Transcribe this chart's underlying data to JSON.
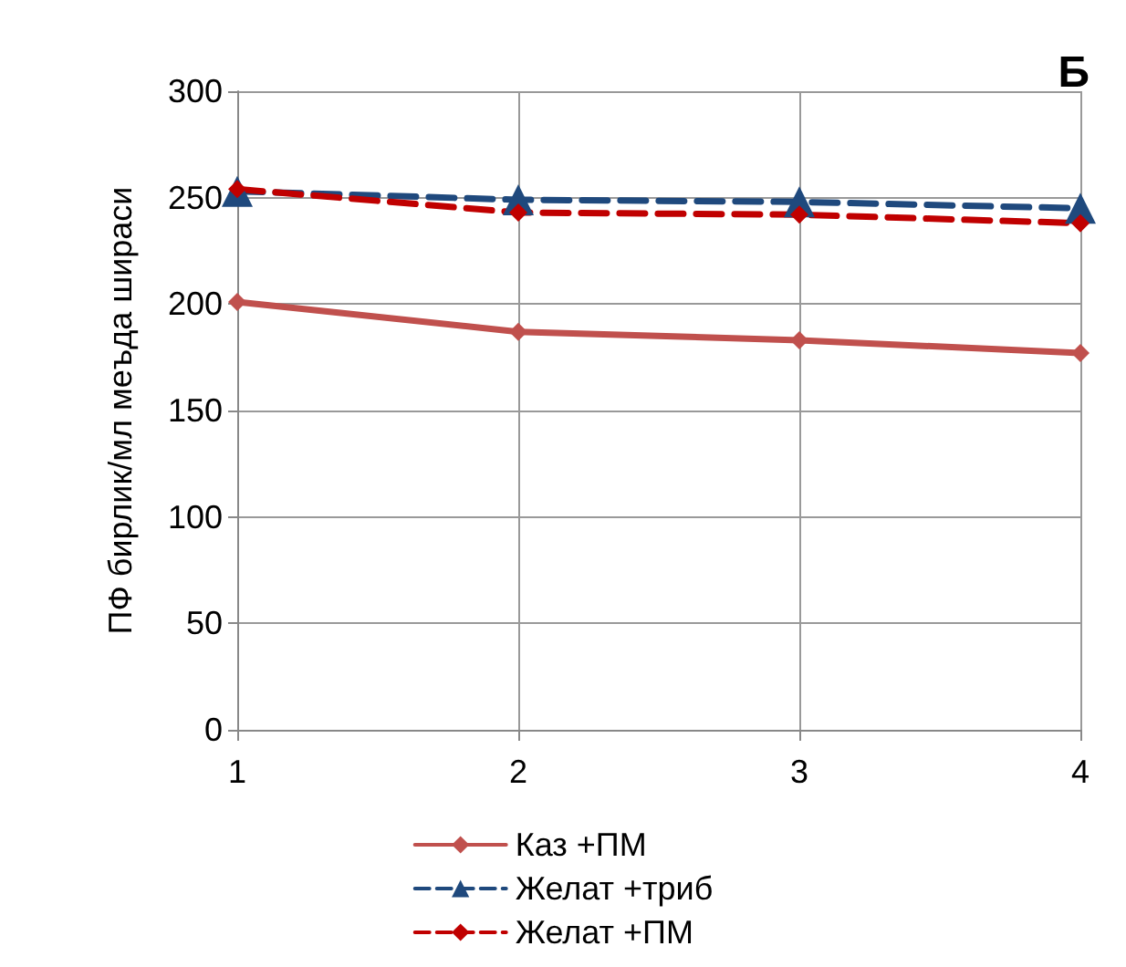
{
  "chart_data": {
    "type": "line",
    "ylabel": "ПФ бирлик/мл меъда шираси",
    "annotations": [
      "Б"
    ],
    "x": [
      1,
      2,
      3,
      4
    ],
    "xlim": [
      1,
      4
    ],
    "xticks": [
      1,
      2,
      3,
      4
    ],
    "ylim": [
      0,
      300
    ],
    "yticks": [
      0,
      50,
      100,
      150,
      200,
      250,
      300
    ],
    "grid": true,
    "legend": "bottom",
    "series": [
      {
        "name": "Каз +ПМ",
        "color": "#c0504d",
        "values": [
          201,
          187,
          183,
          177
        ],
        "marker": "diamond",
        "line_style": "solid"
      },
      {
        "name": "Желат +триб",
        "color": "#1f497d",
        "values": [
          253,
          249,
          248,
          245
        ],
        "marker": "triangle",
        "line_style": "dashed"
      },
      {
        "name": "Желат +ПМ",
        "color": "#c00000",
        "values": [
          254,
          243,
          242,
          238
        ],
        "marker": "diamond",
        "line_style": "dashed"
      }
    ]
  }
}
